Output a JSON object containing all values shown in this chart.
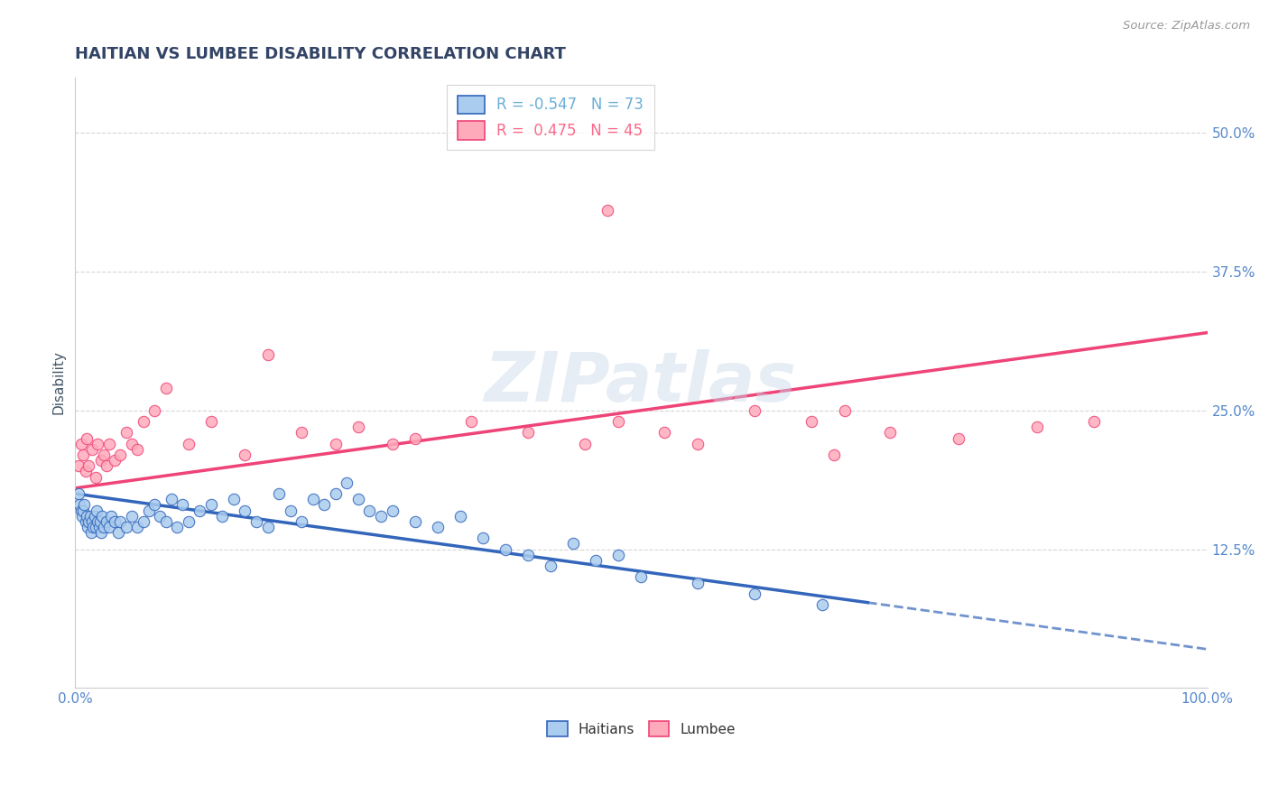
{
  "title": "HAITIAN VS LUMBEE DISABILITY CORRELATION CHART",
  "source": "Source: ZipAtlas.com",
  "ylabel": "Disability",
  "xlim": [
    0,
    100
  ],
  "ylim": [
    0,
    55
  ],
  "ytick_labels": [
    "12.5%",
    "25.0%",
    "37.5%",
    "50.0%"
  ],
  "ytick_values": [
    12.5,
    25.0,
    37.5,
    50.0
  ],
  "legend_entries": [
    {
      "label": "R = -0.547   N = 73",
      "color": "#6baed6"
    },
    {
      "label": "R =  0.475   N = 45",
      "color": "#fb6a8a"
    }
  ],
  "haitians_scatter_x": [
    0.3,
    0.4,
    0.5,
    0.6,
    0.7,
    0.8,
    0.9,
    1.0,
    1.1,
    1.2,
    1.3,
    1.4,
    1.5,
    1.6,
    1.7,
    1.8,
    1.9,
    2.0,
    2.1,
    2.2,
    2.3,
    2.4,
    2.5,
    2.8,
    3.0,
    3.2,
    3.5,
    3.8,
    4.0,
    4.5,
    5.0,
    5.5,
    6.0,
    6.5,
    7.0,
    7.5,
    8.0,
    8.5,
    9.0,
    9.5,
    10.0,
    11.0,
    12.0,
    13.0,
    14.0,
    15.0,
    16.0,
    17.0,
    18.0,
    19.0,
    20.0,
    21.0,
    22.0,
    23.0,
    24.0,
    25.0,
    26.0,
    27.0,
    28.0,
    30.0,
    32.0,
    34.0,
    36.0,
    38.0,
    40.0,
    42.0,
    44.0,
    46.0,
    48.0,
    50.0,
    55.0,
    60.0,
    66.0
  ],
  "haitians_scatter_y": [
    17.5,
    16.5,
    16.0,
    15.5,
    16.0,
    16.5,
    15.0,
    15.5,
    14.5,
    15.0,
    15.5,
    14.0,
    15.0,
    14.5,
    15.5,
    14.5,
    16.0,
    15.0,
    14.5,
    15.0,
    14.0,
    15.5,
    14.5,
    15.0,
    14.5,
    15.5,
    15.0,
    14.0,
    15.0,
    14.5,
    15.5,
    14.5,
    15.0,
    16.0,
    16.5,
    15.5,
    15.0,
    17.0,
    14.5,
    16.5,
    15.0,
    16.0,
    16.5,
    15.5,
    17.0,
    16.0,
    15.0,
    14.5,
    17.5,
    16.0,
    15.0,
    17.0,
    16.5,
    17.5,
    18.5,
    17.0,
    16.0,
    15.5,
    16.0,
    15.0,
    14.5,
    15.5,
    13.5,
    12.5,
    12.0,
    11.0,
    13.0,
    11.5,
    12.0,
    10.0,
    9.5,
    8.5,
    7.5
  ],
  "lumbee_scatter_x": [
    0.3,
    0.5,
    0.7,
    0.9,
    1.0,
    1.2,
    1.5,
    1.8,
    2.0,
    2.3,
    2.5,
    2.8,
    3.0,
    3.5,
    4.0,
    4.5,
    5.0,
    5.5,
    6.0,
    7.0,
    8.0,
    10.0,
    12.0,
    15.0,
    17.0,
    20.0,
    23.0,
    25.0,
    28.0,
    30.0,
    35.0,
    40.0,
    45.0,
    48.0,
    52.0,
    55.0,
    60.0,
    65.0,
    68.0,
    72.0,
    78.0,
    85.0,
    90.0,
    47.0,
    67.0
  ],
  "lumbee_scatter_y": [
    20.0,
    22.0,
    21.0,
    19.5,
    22.5,
    20.0,
    21.5,
    19.0,
    22.0,
    20.5,
    21.0,
    20.0,
    22.0,
    20.5,
    21.0,
    23.0,
    22.0,
    21.5,
    24.0,
    25.0,
    27.0,
    22.0,
    24.0,
    21.0,
    30.0,
    23.0,
    22.0,
    23.5,
    22.0,
    22.5,
    24.0,
    23.0,
    22.0,
    24.0,
    23.0,
    22.0,
    25.0,
    24.0,
    25.0,
    23.0,
    22.5,
    23.5,
    24.0,
    43.0,
    21.0
  ],
  "haitian_line_x0": 0,
  "haitian_line_y0": 17.5,
  "haitian_line_x1": 100,
  "haitian_line_y1": 3.5,
  "haitian_solid_end_x": 70,
  "lumbee_line_x0": 0,
  "lumbee_line_y0": 18.0,
  "lumbee_line_x1": 100,
  "lumbee_line_y1": 32.0,
  "haitian_line_color": "#3366bb",
  "lumbee_line_color": "#ee4477",
  "haitian_scatter_color": "#aaccee",
  "lumbee_scatter_color": "#ffaabb",
  "watermark": "ZIPatlas",
  "background_color": "#ffffff",
  "grid_color": "#cccccc"
}
